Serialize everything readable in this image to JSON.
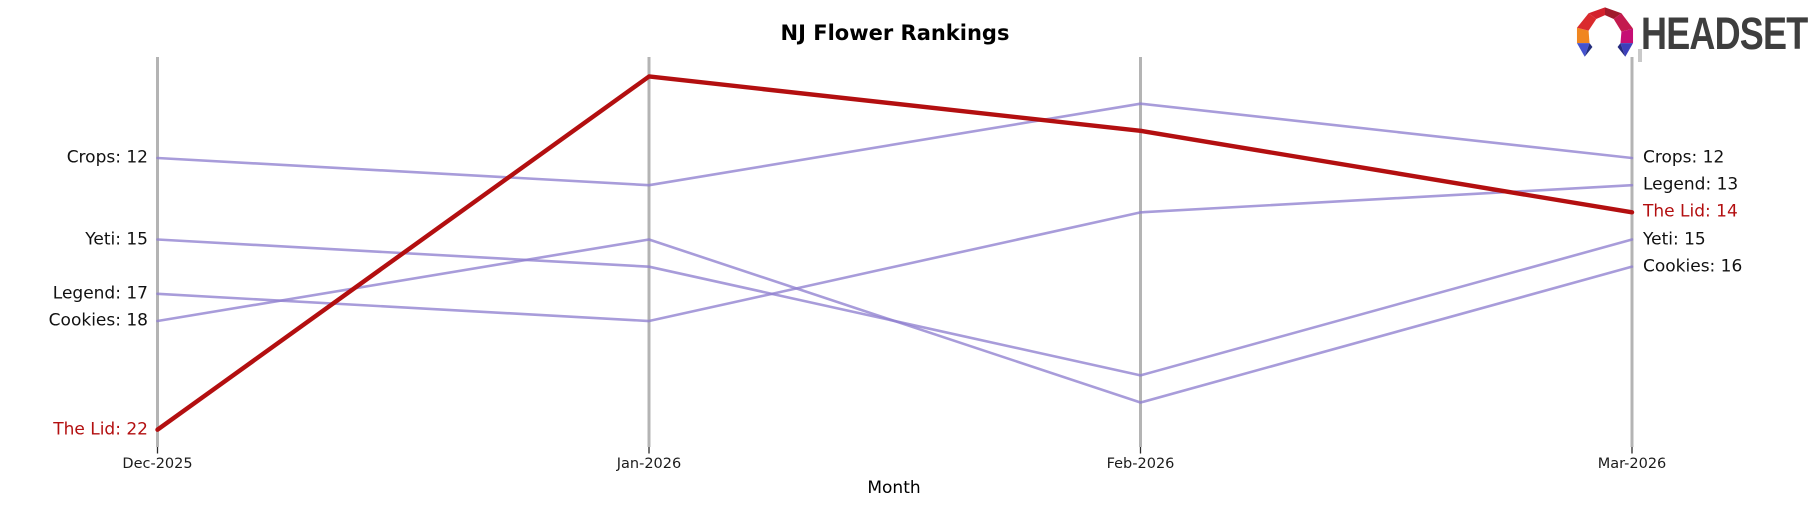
{
  "title": "NJ Flower Rankings",
  "logo": {
    "text": "HEADSET"
  },
  "chart_data": {
    "type": "line",
    "subtype": "bump-rank-chart",
    "title": "NJ Flower Rankings",
    "xlabel": "Month",
    "categories": [
      "Dec-2025",
      "Jan-2026",
      "Feb-2026",
      "Mar-2026"
    ],
    "series": [
      {
        "name": "Crops",
        "values": [
          12,
          13,
          10,
          12
        ],
        "highlight": false
      },
      {
        "name": "Yeti",
        "values": [
          15,
          16,
          20,
          15
        ],
        "highlight": false
      },
      {
        "name": "Legend",
        "values": [
          17,
          18,
          14,
          13
        ],
        "highlight": false
      },
      {
        "name": "Cookies",
        "values": [
          18,
          15,
          21,
          16
        ],
        "highlight": false
      },
      {
        "name": "The Lid",
        "values": [
          22,
          9,
          11,
          14
        ],
        "highlight": true
      }
    ],
    "left_labels": [
      "Crops: 12",
      "Yeti: 15",
      "Legend: 17",
      "Cookies: 18",
      "The Lid: 22"
    ],
    "right_labels": [
      "Crops: 12",
      "Legend: 13",
      "The Lid: 14",
      "Yeti: 15",
      "Cookies: 16"
    ],
    "value_axis": {
      "inverted": true,
      "note": "rank: lower number drawn higher"
    },
    "legend_position": "none",
    "grid": "vertical-category-axes-only",
    "colors": {
      "line": "#8f80cf",
      "highlight": "#b30f10",
      "axis": "#b4b4b4",
      "tick": "#2a2a2a",
      "text": "#111111"
    }
  }
}
